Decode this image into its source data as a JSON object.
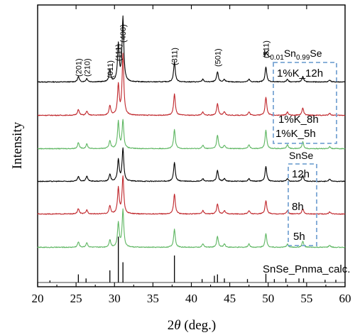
{
  "chart_data": {
    "type": "line",
    "title": "",
    "xlabel": {
      "prefix": "2",
      "symbol": "θ",
      "suffix": " (deg.)"
    },
    "ylabel": "Intensity",
    "xlim": [
      20,
      60
    ],
    "x_ticks": [
      20,
      25,
      30,
      35,
      40,
      45,
      50,
      55,
      60
    ],
    "y_ticks_shown": false,
    "grid": false,
    "legend": "none",
    "peak_labels": [
      {
        "text": "(201)",
        "x": 25.3
      },
      {
        "text": "(210)",
        "x": 26.4
      },
      {
        "text": "(011)",
        "x": 29.4
      },
      {
        "text": "(111)",
        "x": 30.5
      },
      {
        "text": "(400)",
        "x": 31.1
      },
      {
        "text": "(311)",
        "x": 37.8
      },
      {
        "text": "(501)",
        "x": 43.4
      },
      {
        "text": "(511)",
        "x": 49.7
      }
    ],
    "group_labels": [
      {
        "id": "k-doped",
        "parts": [
          "K",
          "0.01",
          "Sn",
          "0.99",
          "Se"
        ]
      },
      {
        "id": "undoped",
        "parts": [
          "SnSe"
        ]
      }
    ],
    "series": [
      {
        "name": "1%K_12h",
        "color": "#000000",
        "group": "k-doped",
        "peaks": [
          [
            25.3,
            8
          ],
          [
            26.4,
            5
          ],
          [
            29.4,
            18
          ],
          [
            30.5,
            55
          ],
          [
            31.1,
            95
          ],
          [
            37.8,
            30
          ],
          [
            41.5,
            4
          ],
          [
            43.4,
            15
          ],
          [
            44.3,
            4
          ],
          [
            47.5,
            4
          ],
          [
            49.7,
            22
          ],
          [
            52.5,
            4
          ],
          [
            54.5,
            8
          ],
          [
            58.0,
            3
          ]
        ]
      },
      {
        "name": "1%K_8h",
        "color": "#c0262b",
        "group": "k-doped",
        "peaks": [
          [
            25.3,
            9
          ],
          [
            26.4,
            6
          ],
          [
            29.4,
            14
          ],
          [
            30.5,
            45
          ],
          [
            31.1,
            90
          ],
          [
            37.8,
            32
          ],
          [
            41.5,
            5
          ],
          [
            43.4,
            17
          ],
          [
            44.3,
            5
          ],
          [
            47.5,
            5
          ],
          [
            49.7,
            27
          ],
          [
            52.5,
            5
          ],
          [
            54.5,
            11
          ],
          [
            58.0,
            3
          ]
        ]
      },
      {
        "name": "1%K_5h",
        "color": "#5db661",
        "group": "k-doped",
        "peaks": [
          [
            25.3,
            9
          ],
          [
            26.4,
            7
          ],
          [
            29.4,
            12
          ],
          [
            30.5,
            40
          ],
          [
            31.1,
            42
          ],
          [
            37.8,
            28
          ],
          [
            41.5,
            5
          ],
          [
            43.4,
            20
          ],
          [
            44.3,
            5
          ],
          [
            47.5,
            6
          ],
          [
            49.7,
            27
          ],
          [
            52.5,
            6
          ],
          [
            54.5,
            10
          ],
          [
            58.0,
            3
          ]
        ]
      },
      {
        "name": "12h",
        "color": "#000000",
        "group": "undoped",
        "peaks": [
          [
            25.3,
            7
          ],
          [
            26.4,
            8
          ],
          [
            29.4,
            10
          ],
          [
            30.5,
            32
          ],
          [
            31.1,
            48
          ],
          [
            37.8,
            28
          ],
          [
            41.5,
            4
          ],
          [
            43.4,
            16
          ],
          [
            44.3,
            4
          ],
          [
            47.5,
            4
          ],
          [
            49.7,
            22
          ],
          [
            52.5,
            4
          ],
          [
            54.5,
            9
          ],
          [
            58.0,
            3
          ]
        ]
      },
      {
        "name": "8h",
        "color": "#c0262b",
        "group": "undoped",
        "peaks": [
          [
            25.3,
            8
          ],
          [
            26.4,
            6
          ],
          [
            29.4,
            12
          ],
          [
            30.5,
            38
          ],
          [
            31.1,
            55
          ],
          [
            37.8,
            30
          ],
          [
            41.5,
            5
          ],
          [
            43.4,
            15
          ],
          [
            44.3,
            5
          ],
          [
            47.5,
            5
          ],
          [
            49.7,
            20
          ],
          [
            52.5,
            5
          ],
          [
            54.5,
            8
          ],
          [
            58.0,
            3
          ]
        ]
      },
      {
        "name": "5h",
        "color": "#5db661",
        "group": "undoped",
        "peaks": [
          [
            25.3,
            8
          ],
          [
            26.4,
            7
          ],
          [
            29.4,
            11
          ],
          [
            30.5,
            36
          ],
          [
            31.1,
            55
          ],
          [
            37.8,
            27
          ],
          [
            41.5,
            5
          ],
          [
            43.4,
            16
          ],
          [
            44.3,
            5
          ],
          [
            47.5,
            5
          ],
          [
            49.7,
            20
          ],
          [
            52.5,
            5
          ],
          [
            54.5,
            9
          ],
          [
            58.0,
            3
          ]
        ]
      },
      {
        "name": "SnSe_Pnma_calc.",
        "color": "#000000",
        "group": "reference",
        "style": "sticks",
        "peaks": [
          [
            21.6,
            3
          ],
          [
            25.3,
            12
          ],
          [
            26.3,
            6
          ],
          [
            29.4,
            18
          ],
          [
            30.5,
            68
          ],
          [
            31.1,
            30
          ],
          [
            37.8,
            40
          ],
          [
            41.4,
            5
          ],
          [
            43.0,
            10
          ],
          [
            43.4,
            12
          ],
          [
            44.3,
            6
          ],
          [
            47.3,
            5
          ],
          [
            49.7,
            13
          ],
          [
            50.8,
            5
          ],
          [
            52.3,
            6
          ],
          [
            54.0,
            6
          ],
          [
            54.6,
            6
          ],
          [
            57.4,
            4
          ],
          [
            58.8,
            4
          ]
        ]
      }
    ]
  }
}
